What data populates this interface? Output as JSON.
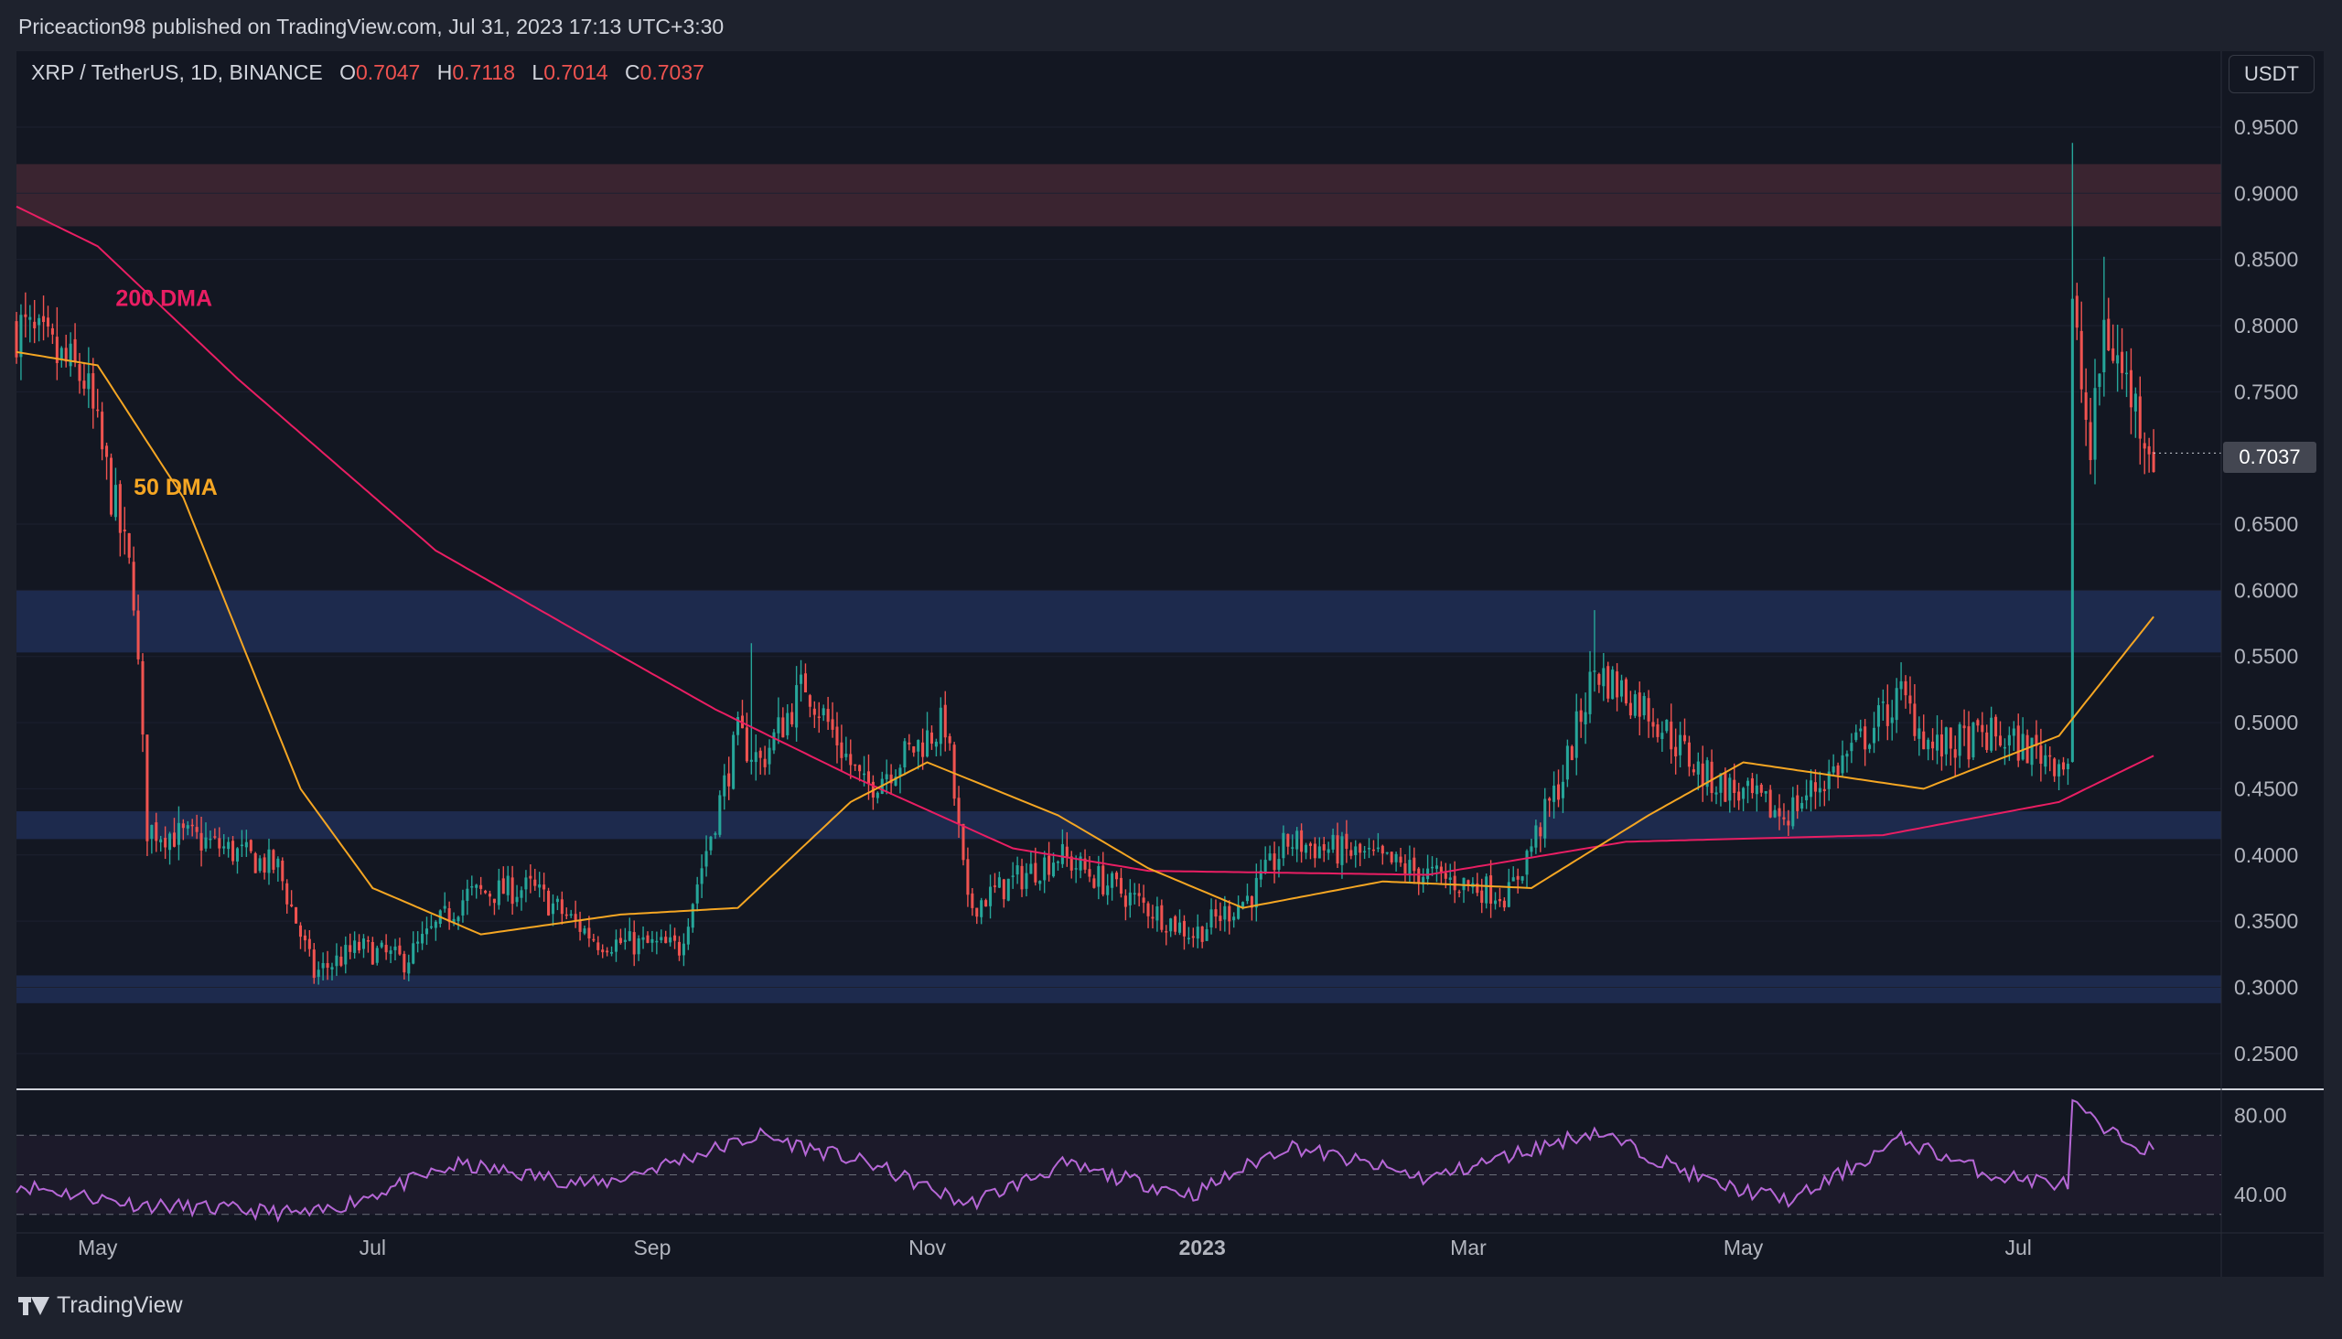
{
  "header": {
    "published": "Priceaction98 published on TradingView.com, Jul 31, 2023 17:13 UTC+3:30"
  },
  "legend": {
    "symbol": "XRP / TetherUS, 1D, BINANCE",
    "o_label": "O",
    "o_value": "0.7047",
    "h_label": "H",
    "h_value": "0.7118",
    "l_label": "L",
    "l_value": "0.7014",
    "c_label": "C",
    "c_value": "0.7037"
  },
  "currency_button": "USDT",
  "last_price_label": "0.7037",
  "brand": "TradingView",
  "colors": {
    "background": "#131722",
    "frame": "#1e222d",
    "up_candle": "#26a69a",
    "down_candle": "#ef5350",
    "ma50": "#f5a623",
    "ma200": "#e91e63",
    "rsi": "#b667d6",
    "resistance_zone": "#3a2430",
    "support_zone": "#1d2a4d"
  },
  "chart_data": {
    "type": "candlestick",
    "price_axis": {
      "ylim": [
        0.225,
        0.97
      ],
      "ticks": [
        "0.9500",
        "0.9000",
        "0.8500",
        "0.8000",
        "0.7500",
        "0.6500",
        "0.6000",
        "0.5500",
        "0.5000",
        "0.4500",
        "0.4000",
        "0.3500",
        "0.3000",
        "0.2500"
      ]
    },
    "time_axis": {
      "ticks": [
        {
          "label": "May",
          "date": "2022-05-01"
        },
        {
          "label": "Jul",
          "date": "2022-07-01"
        },
        {
          "label": "Sep",
          "date": "2022-09-01"
        },
        {
          "label": "Nov",
          "date": "2022-11-01"
        },
        {
          "label": "2023",
          "date": "2023-01-01",
          "bold": true
        },
        {
          "label": "Mar",
          "date": "2023-03-01"
        },
        {
          "label": "May",
          "date": "2023-05-01"
        },
        {
          "label": "Jul",
          "date": "2023-07-01"
        }
      ],
      "range": [
        "2022-04-13",
        "2023-08-15"
      ]
    },
    "zones": [
      {
        "kind": "resistance",
        "from": 0.875,
        "to": 0.922
      },
      {
        "kind": "support",
        "from": 0.553,
        "to": 0.6
      },
      {
        "kind": "support",
        "from": 0.412,
        "to": 0.433
      },
      {
        "kind": "support",
        "from": 0.288,
        "to": 0.309
      }
    ],
    "ma_labels": [
      {
        "text": "200 DMA",
        "date": "2022-05-05",
        "price": 0.815
      },
      {
        "text": "50 DMA",
        "date": "2022-05-09",
        "price": 0.672
      }
    ],
    "close_anchors": [
      {
        "date": "2022-04-13",
        "close": 0.8
      },
      {
        "date": "2022-04-20",
        "close": 0.78
      },
      {
        "date": "2022-04-28",
        "close": 0.76
      },
      {
        "date": "2022-05-05",
        "close": 0.66
      },
      {
        "date": "2022-05-09",
        "close": 0.6
      },
      {
        "date": "2022-05-12",
        "close": 0.42
      },
      {
        "date": "2022-05-25",
        "close": 0.41
      },
      {
        "date": "2022-06-10",
        "close": 0.39
      },
      {
        "date": "2022-06-18",
        "close": 0.31
      },
      {
        "date": "2022-06-28",
        "close": 0.33
      },
      {
        "date": "2022-07-08",
        "close": 0.32
      },
      {
        "date": "2022-07-22",
        "close": 0.37
      },
      {
        "date": "2022-08-05",
        "close": 0.375
      },
      {
        "date": "2022-08-20",
        "close": 0.335
      },
      {
        "date": "2022-09-07",
        "close": 0.33
      },
      {
        "date": "2022-09-20",
        "close": 0.49
      },
      {
        "date": "2022-09-25",
        "close": 0.47
      },
      {
        "date": "2022-10-05",
        "close": 0.53
      },
      {
        "date": "2022-10-18",
        "close": 0.45
      },
      {
        "date": "2022-11-05",
        "close": 0.5
      },
      {
        "date": "2022-11-10",
        "close": 0.36
      },
      {
        "date": "2022-11-30",
        "close": 0.4
      },
      {
        "date": "2022-12-15",
        "close": 0.37
      },
      {
        "date": "2022-12-30",
        "close": 0.34
      },
      {
        "date": "2023-01-12",
        "close": 0.37
      },
      {
        "date": "2023-01-20",
        "close": 0.41
      },
      {
        "date": "2023-02-05",
        "close": 0.4
      },
      {
        "date": "2023-02-20",
        "close": 0.385
      },
      {
        "date": "2023-03-10",
        "close": 0.37
      },
      {
        "date": "2023-03-22",
        "close": 0.46
      },
      {
        "date": "2023-03-29",
        "close": 0.54
      },
      {
        "date": "2023-04-10",
        "close": 0.51
      },
      {
        "date": "2023-04-22",
        "close": 0.46
      },
      {
        "date": "2023-05-10",
        "close": 0.43
      },
      {
        "date": "2023-05-20",
        "close": 0.46
      },
      {
        "date": "2023-06-05",
        "close": 0.52
      },
      {
        "date": "2023-06-12",
        "close": 0.48
      },
      {
        "date": "2023-06-25",
        "close": 0.49
      },
      {
        "date": "2023-07-12",
        "close": 0.47
      },
      {
        "date": "2023-07-13",
        "close": 0.81
      },
      {
        "date": "2023-07-17",
        "close": 0.7
      },
      {
        "date": "2023-07-20",
        "close": 0.8
      },
      {
        "date": "2023-07-31",
        "close": 0.7037
      }
    ],
    "spike_highs": [
      {
        "date": "2023-07-13",
        "high": 0.938
      },
      {
        "date": "2023-07-20",
        "high": 0.852
      },
      {
        "date": "2023-03-29",
        "high": 0.585
      },
      {
        "date": "2022-09-23",
        "high": 0.56
      }
    ],
    "ma50_anchors": [
      {
        "date": "2022-04-13",
        "value": 0.78
      },
      {
        "date": "2022-05-01",
        "value": 0.77
      },
      {
        "date": "2022-05-20",
        "value": 0.67
      },
      {
        "date": "2022-06-15",
        "value": 0.45
      },
      {
        "date": "2022-07-01",
        "value": 0.375
      },
      {
        "date": "2022-07-25",
        "value": 0.34
      },
      {
        "date": "2022-08-25",
        "value": 0.355
      },
      {
        "date": "2022-09-20",
        "value": 0.36
      },
      {
        "date": "2022-10-15",
        "value": 0.44
      },
      {
        "date": "2022-11-01",
        "value": 0.47
      },
      {
        "date": "2022-11-30",
        "value": 0.43
      },
      {
        "date": "2022-12-20",
        "value": 0.39
      },
      {
        "date": "2023-01-10",
        "value": 0.36
      },
      {
        "date": "2023-02-10",
        "value": 0.38
      },
      {
        "date": "2023-03-15",
        "value": 0.375
      },
      {
        "date": "2023-04-10",
        "value": 0.43
      },
      {
        "date": "2023-05-01",
        "value": 0.47
      },
      {
        "date": "2023-06-10",
        "value": 0.45
      },
      {
        "date": "2023-07-10",
        "value": 0.49
      },
      {
        "date": "2023-07-31",
        "value": 0.58
      }
    ],
    "ma200_anchors": [
      {
        "date": "2022-04-13",
        "value": 0.89
      },
      {
        "date": "2022-05-01",
        "value": 0.86
      },
      {
        "date": "2022-06-01",
        "value": 0.76
      },
      {
        "date": "2022-07-15",
        "value": 0.63
      },
      {
        "date": "2022-08-20",
        "value": 0.56
      },
      {
        "date": "2022-09-15",
        "value": 0.51
      },
      {
        "date": "2022-10-15",
        "value": 0.46
      },
      {
        "date": "2022-11-20",
        "value": 0.405
      },
      {
        "date": "2022-12-20",
        "value": 0.388
      },
      {
        "date": "2023-02-20",
        "value": 0.385
      },
      {
        "date": "2023-04-05",
        "value": 0.41
      },
      {
        "date": "2023-06-01",
        "value": 0.415
      },
      {
        "date": "2023-07-10",
        "value": 0.44
      },
      {
        "date": "2023-07-31",
        "value": 0.475
      }
    ],
    "rsi": {
      "ticks": [
        "80.00",
        "40.00"
      ],
      "ylim": [
        22,
        90
      ],
      "band_levels": [
        70,
        50,
        30
      ],
      "anchors": [
        {
          "date": "2022-04-13",
          "value": 45
        },
        {
          "date": "2022-05-10",
          "value": 35
        },
        {
          "date": "2022-06-18",
          "value": 30
        },
        {
          "date": "2022-07-20",
          "value": 55
        },
        {
          "date": "2022-08-20",
          "value": 45
        },
        {
          "date": "2022-09-25",
          "value": 70
        },
        {
          "date": "2022-10-20",
          "value": 55
        },
        {
          "date": "2022-11-10",
          "value": 35
        },
        {
          "date": "2022-12-01",
          "value": 55
        },
        {
          "date": "2022-12-30",
          "value": 40
        },
        {
          "date": "2023-01-20",
          "value": 65
        },
        {
          "date": "2023-02-20",
          "value": 48
        },
        {
          "date": "2023-03-29",
          "value": 72
        },
        {
          "date": "2023-04-25",
          "value": 45
        },
        {
          "date": "2023-05-12",
          "value": 37
        },
        {
          "date": "2023-06-05",
          "value": 68
        },
        {
          "date": "2023-06-25",
          "value": 50
        },
        {
          "date": "2023-07-12",
          "value": 45
        },
        {
          "date": "2023-07-13",
          "value": 86
        },
        {
          "date": "2023-07-20",
          "value": 72
        },
        {
          "date": "2023-07-31",
          "value": 62
        }
      ]
    }
  }
}
